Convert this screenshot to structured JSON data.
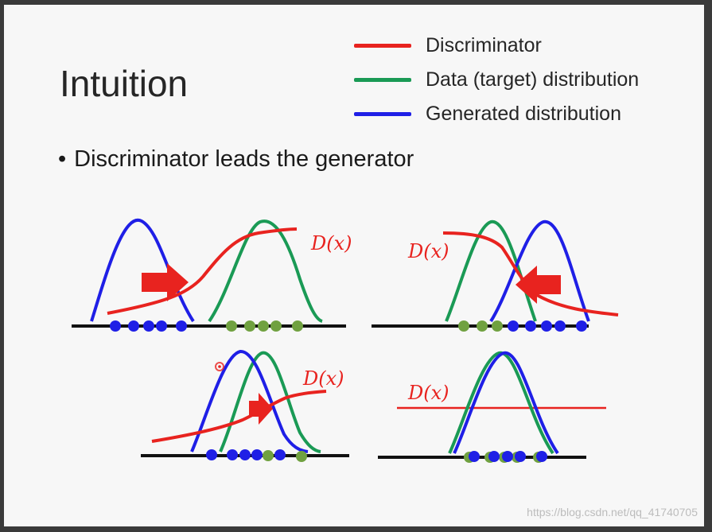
{
  "slide": {
    "title": "Intuition",
    "bullet": "Discriminator leads the generator",
    "watermark": "https://blog.csdn.net/qq_41740705"
  },
  "legend": [
    {
      "label": "Discriminator",
      "color": "#e8231f"
    },
    {
      "label": "Data (target) distribution",
      "color": "#1a9a55"
    },
    {
      "label": "Generated distribution",
      "color": "#1f1fe6"
    }
  ],
  "panels": [
    {
      "name": "top-left",
      "d_label": "D(x)"
    },
    {
      "name": "top-right",
      "d_label": "D(x)"
    },
    {
      "name": "bottom-left",
      "d_label": "D(x)"
    },
    {
      "name": "bottom-right",
      "d_label": "D(x)"
    }
  ],
  "colors": {
    "discriminator": "#e8231f",
    "data": "#1a9a55",
    "generated": "#1f1fe6",
    "data_dot": "#70a140",
    "axis": "#111111"
  }
}
